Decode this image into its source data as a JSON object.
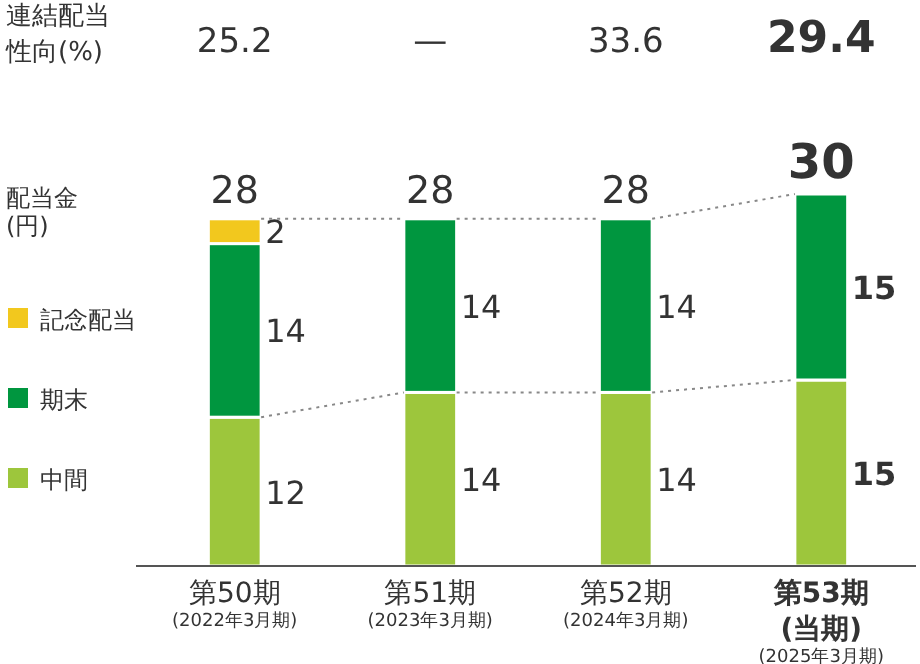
{
  "chart_data": {
    "type": "bar",
    "stacked": true,
    "categories": [
      "第50期\n(2022年3月期)",
      "第51期\n(2023年3月期)",
      "第52期\n(2024年3月期)",
      "第53期\n(当期)\n(2025年3月期)"
    ],
    "series": [
      {
        "name": "中間",
        "color": "#9dc63c",
        "values": [
          12,
          14,
          14,
          15
        ]
      },
      {
        "name": "期末",
        "color": "#00963f",
        "values": [
          14,
          14,
          14,
          15
        ]
      },
      {
        "name": "記念配当",
        "color": "#f2c81e",
        "values": [
          2,
          null,
          null,
          null
        ]
      }
    ],
    "data_labels": true,
    "totals": [
      "28",
      "28",
      "28",
      "30"
    ],
    "legend": "left",
    "legend_title": "配当金(円)",
    "annotations": [
      "連結配当性向(%)",
      "25.2",
      "—",
      "33.6",
      "29.4"
    ]
  }
}
